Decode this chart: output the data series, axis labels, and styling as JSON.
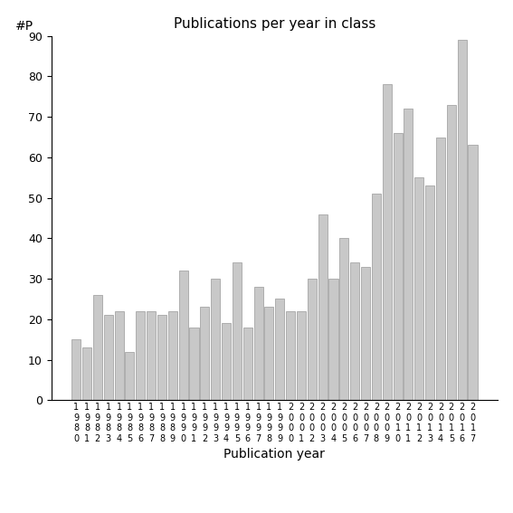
{
  "years": [
    "1980",
    "1981",
    "1982",
    "1983",
    "1984",
    "1985",
    "1986",
    "1987",
    "1988",
    "1989",
    "1990",
    "1991",
    "1992",
    "1993",
    "1994",
    "1995",
    "1996",
    "1997",
    "1998",
    "1999",
    "2000",
    "2001",
    "2002",
    "2003",
    "2004",
    "2005",
    "2006",
    "2007",
    "2008",
    "2009",
    "2010",
    "2011",
    "2012",
    "2013",
    "2014",
    "2015",
    "2016",
    "2017"
  ],
  "values": [
    15,
    13,
    26,
    21,
    22,
    12,
    22,
    22,
    21,
    22,
    32,
    18,
    23,
    30,
    19,
    34,
    18,
    28,
    23,
    25,
    22,
    22,
    30,
    46,
    30,
    40,
    34,
    33,
    51,
    78,
    66,
    72,
    55,
    53,
    65,
    73,
    89,
    63
  ],
  "title": "Publications per year in class",
  "xlabel": "Publication year",
  "ylabel_label": "#P",
  "ylim": [
    0,
    90
  ],
  "bar_color": "#c8c8c8",
  "bar_edge_color": "#999999",
  "background_color": "#ffffff",
  "yticks": [
    0,
    10,
    20,
    30,
    40,
    50,
    60,
    70,
    80,
    90
  ]
}
